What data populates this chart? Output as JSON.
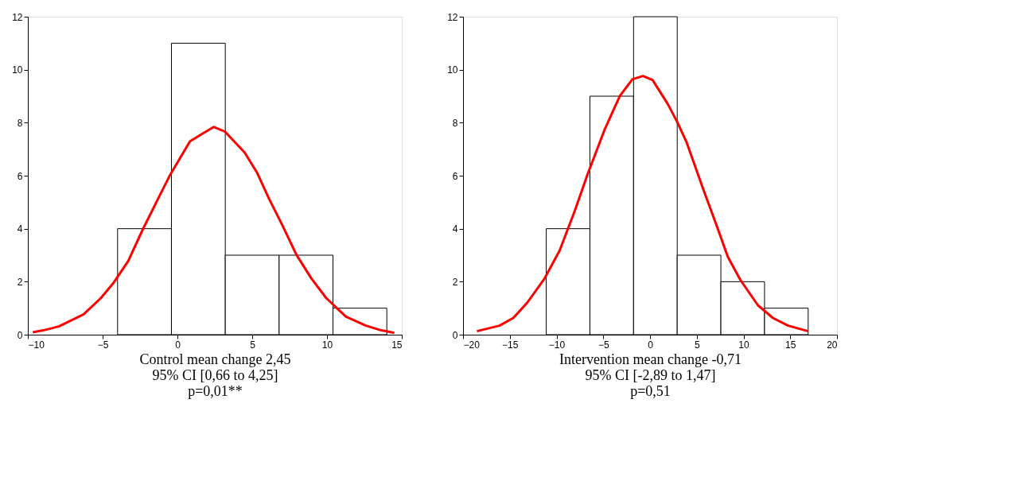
{
  "chart_data": [
    {
      "type": "histogram",
      "xlabel": "Control mean change 2,45\n95% CI [0,66 to 4,25]\np=0,01**",
      "bins": [
        -4.0,
        -0.4,
        3.2,
        6.8,
        10.4,
        14.0
      ],
      "values": [
        4,
        11,
        3,
        3,
        1
      ],
      "color": "#ffffff",
      "xlim": [
        -10,
        15
      ],
      "xticks": [
        -10,
        -5,
        0,
        5,
        10,
        15
      ],
      "ylim": [
        0,
        12
      ],
      "yticks": [
        0,
        2,
        4,
        6,
        8,
        10,
        12
      ],
      "grid": false,
      "series": [
        {
          "type": "line",
          "color": "#ff0000",
          "x": [
            -9.67,
            -8.92,
            -7.93,
            -6.27,
            -5.12,
            -4.29,
            -3.29,
            -2.3,
            -1.31,
            -0.48,
            0.84,
            2.42,
            3.16,
            4.49,
            5.31,
            6.14,
            6.97,
            7.96,
            8.96,
            9.95,
            11.27,
            12.6,
            13.59,
            14.5
          ],
          "values": [
            0.09,
            0.17,
            0.31,
            0.77,
            1.38,
            1.94,
            2.78,
            3.99,
            5.11,
            6.04,
            7.3,
            7.84,
            7.67,
            6.88,
            6.13,
            5.11,
            4.18,
            3.01,
            2.12,
            1.38,
            0.68,
            0.34,
            0.17,
            0.07
          ]
        }
      ]
    },
    {
      "type": "histogram",
      "xlabel": "Intervention mean change -0,71\n95% CI [-2,89 to 1,47]\np=0,51",
      "bins": [
        -11.1,
        -6.43,
        -1.76,
        2.91,
        7.58,
        12.25,
        16.92
      ],
      "values": [
        4,
        9,
        12,
        3,
        2,
        1
      ],
      "color": "#ffffff",
      "xlim": [
        -20,
        20
      ],
      "xticks": [
        -20,
        -15,
        -10,
        -5,
        0,
        5,
        10,
        15,
        20
      ],
      "ylim": [
        0,
        12
      ],
      "yticks": [
        0,
        2,
        4,
        6,
        8,
        10,
        12
      ],
      "grid": false,
      "series": [
        {
          "type": "line",
          "color": "#ff0000",
          "x": [
            -18.52,
            -16.1,
            -14.63,
            -13.15,
            -11.28,
            -9.66,
            -8.05,
            -6.71,
            -4.83,
            -3.22,
            -1.88,
            -0.75,
            0.27,
            1.88,
            2.95,
            3.89,
            5.64,
            7.25,
            8.32,
            9.66,
            11.54,
            13.15,
            14.77,
            16.91
          ],
          "values": [
            0.13,
            0.34,
            0.63,
            1.2,
            2.12,
            3.18,
            4.67,
            6.02,
            7.76,
            9.01,
            9.64,
            9.76,
            9.61,
            8.72,
            8.0,
            7.28,
            5.54,
            4.0,
            2.94,
            2.07,
            1.11,
            0.63,
            0.34,
            0.13
          ]
        }
      ]
    }
  ]
}
